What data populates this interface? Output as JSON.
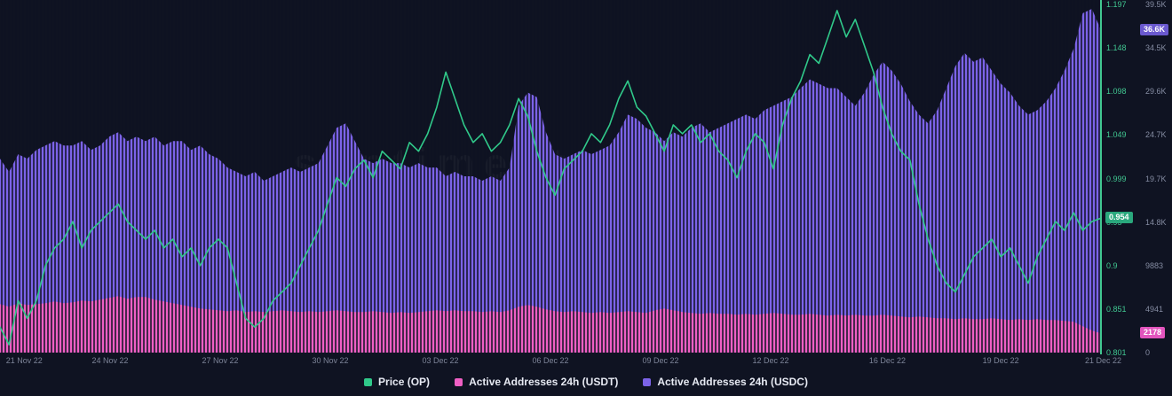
{
  "watermark": "santiment",
  "colors": {
    "background": "#0f1322",
    "purple": "#7c63e8",
    "pink": "#ef5fc4",
    "green": "#30c98a",
    "axis_green": "#41c791",
    "tick_gray": "#858ca2",
    "x_label_gray": "#7d8498",
    "legend_text": "#e7eaf3"
  },
  "chart_data": {
    "type": "mixed",
    "title": "",
    "x_range": [
      "21 Nov 22",
      "21 Dec 22"
    ],
    "grid": false,
    "legend_position": "bottom-center",
    "x_tick_labels": [
      {
        "label": "21 Nov 22",
        "pos": 0.022
      },
      {
        "label": "24 Nov 22",
        "pos": 0.1
      },
      {
        "label": "27 Nov 22",
        "pos": 0.2
      },
      {
        "label": "30 Nov 22",
        "pos": 0.3
      },
      {
        "label": "03 Dec 22",
        "pos": 0.4
      },
      {
        "label": "06 Dec 22",
        "pos": 0.5
      },
      {
        "label": "09 Dec 22",
        "pos": 0.6
      },
      {
        "label": "12 Dec 22",
        "pos": 0.7
      },
      {
        "label": "16 Dec 22",
        "pos": 0.806
      },
      {
        "label": "19 Dec 22",
        "pos": 0.909
      },
      {
        "label": "21 Dec 22",
        "pos": 1.002
      }
    ],
    "axes": {
      "price": {
        "side": "right-inner",
        "min": 0.801,
        "max": 1.197,
        "ticks": [
          "1.197",
          "1.148",
          "1.098",
          "1.049",
          "0.999",
          "0.95",
          "0.9",
          "0.851",
          "0.801"
        ]
      },
      "addresses": {
        "side": "right-outer",
        "min": 0,
        "max_k": 39.5,
        "ticks": [
          "39.5K",
          "34.5K",
          "29.6K",
          "24.7K",
          "19.7K",
          "14.8K",
          "9883",
          "4941",
          "0"
        ]
      }
    },
    "series": [
      {
        "name": "Price (OP)",
        "type": "line",
        "axis": "price",
        "color": "#30c98a",
        "values": [
          0.83,
          0.81,
          0.86,
          0.84,
          0.86,
          0.9,
          0.92,
          0.93,
          0.95,
          0.92,
          0.94,
          0.95,
          0.96,
          0.97,
          0.95,
          0.94,
          0.93,
          0.94,
          0.92,
          0.93,
          0.91,
          0.92,
          0.9,
          0.92,
          0.93,
          0.92,
          0.88,
          0.84,
          0.83,
          0.84,
          0.86,
          0.87,
          0.88,
          0.9,
          0.92,
          0.94,
          0.97,
          1.0,
          0.99,
          1.01,
          1.02,
          1.0,
          1.03,
          1.02,
          1.01,
          1.04,
          1.03,
          1.05,
          1.08,
          1.12,
          1.09,
          1.06,
          1.04,
          1.05,
          1.03,
          1.04,
          1.06,
          1.09,
          1.07,
          1.03,
          1.0,
          0.98,
          1.01,
          1.02,
          1.03,
          1.05,
          1.04,
          1.06,
          1.09,
          1.11,
          1.08,
          1.07,
          1.05,
          1.03,
          1.06,
          1.05,
          1.06,
          1.04,
          1.05,
          1.03,
          1.02,
          1.0,
          1.03,
          1.05,
          1.04,
          1.01,
          1.06,
          1.09,
          1.11,
          1.14,
          1.13,
          1.16,
          1.19,
          1.16,
          1.18,
          1.15,
          1.12,
          1.08,
          1.05,
          1.03,
          1.02,
          0.97,
          0.93,
          0.9,
          0.88,
          0.87,
          0.89,
          0.91,
          0.92,
          0.93,
          0.91,
          0.92,
          0.9,
          0.88,
          0.91,
          0.93,
          0.95,
          0.94,
          0.96,
          0.94,
          0.95,
          0.954
        ]
      },
      {
        "name": "Active Addresses 24h (USDC)",
        "type": "bar-area",
        "axis": "addresses",
        "unit": "K",
        "color": "#7c63e8",
        "values": [
          22,
          20.5,
          22.5,
          22,
          23,
          23.5,
          24,
          23.5,
          23.5,
          24,
          23,
          23.5,
          24.5,
          25,
          24,
          24.5,
          24,
          24.5,
          23.5,
          24,
          24,
          23,
          23.5,
          22.5,
          22,
          21,
          20.5,
          20,
          20.5,
          19.5,
          20,
          20.5,
          21,
          20.5,
          21,
          21.5,
          23.5,
          25.5,
          26,
          24,
          22,
          21.5,
          22,
          21.5,
          21.5,
          21,
          21.5,
          21,
          21,
          20,
          20.5,
          20,
          20,
          19.5,
          20,
          19.5,
          21,
          28,
          29.5,
          29,
          25,
          22.5,
          22,
          22.5,
          23,
          22.5,
          23,
          23.5,
          25,
          27,
          26.5,
          25.5,
          25,
          24,
          25,
          24.5,
          25.5,
          26,
          25,
          25.5,
          26,
          26.5,
          27,
          26.5,
          27.5,
          28,
          28.5,
          29,
          30,
          31,
          30.5,
          30,
          30,
          29,
          28,
          29.5,
          31.5,
          33,
          32,
          30.5,
          28.5,
          27,
          26,
          27.5,
          30,
          32.5,
          34,
          33,
          33.5,
          32,
          30.5,
          29.5,
          28,
          27,
          27.5,
          28.5,
          30,
          32,
          34.5,
          38.5,
          39,
          36.6
        ]
      },
      {
        "name": "Active Addresses 24h (USDT)",
        "type": "bar-area",
        "axis": "addresses",
        "unit": "K",
        "color": "#ef5fc4",
        "values": [
          5.5,
          5.2,
          5.6,
          5.4,
          5.5,
          5.6,
          5.8,
          5.6,
          5.7,
          5.9,
          5.8,
          6.0,
          6.2,
          6.4,
          6.1,
          6.3,
          6.3,
          6.0,
          5.8,
          5.6,
          5.4,
          5.2,
          5.0,
          4.9,
          4.8,
          4.7,
          4.8,
          4.6,
          4.7,
          4.6,
          4.7,
          4.8,
          4.7,
          4.6,
          4.7,
          4.6,
          4.7,
          4.8,
          4.7,
          4.6,
          4.6,
          4.7,
          4.6,
          4.5,
          4.6,
          4.5,
          4.6,
          4.7,
          4.8,
          4.7,
          4.8,
          4.7,
          4.7,
          4.6,
          4.7,
          4.6,
          4.8,
          5.2,
          5.4,
          5.2,
          4.9,
          4.7,
          4.6,
          4.7,
          4.6,
          4.5,
          4.6,
          4.5,
          4.6,
          4.7,
          4.6,
          4.5,
          4.8,
          5.0,
          4.8,
          4.6,
          4.5,
          4.4,
          4.5,
          4.4,
          4.4,
          4.3,
          4.4,
          4.3,
          4.4,
          4.5,
          4.4,
          4.3,
          4.3,
          4.4,
          4.3,
          4.2,
          4.3,
          4.2,
          4.3,
          4.2,
          4.2,
          4.3,
          4.2,
          4.1,
          4.0,
          4.1,
          4.0,
          3.9,
          3.9,
          3.8,
          3.9,
          3.8,
          3.8,
          3.9,
          3.8,
          3.7,
          3.8,
          3.7,
          3.8,
          3.7,
          3.7,
          3.6,
          3.5,
          3.0,
          2.5,
          2.18
        ]
      }
    ],
    "last_value_badges": [
      {
        "text": "36.6K",
        "value_k": 36.6,
        "axis": "addresses",
        "color": "#6a59cf"
      },
      {
        "text": "0.954",
        "value": 0.954,
        "axis": "price",
        "color": "#2aa87d"
      },
      {
        "text": "2178",
        "value_k": 2.178,
        "axis": "addresses",
        "color": "#e254bd"
      }
    ]
  },
  "legend": {
    "note": "order shown left-to-right",
    "items_order": [
      "Price (OP)",
      "Active Addresses 24h (USDT)",
      "Active Addresses 24h (USDC)"
    ]
  }
}
